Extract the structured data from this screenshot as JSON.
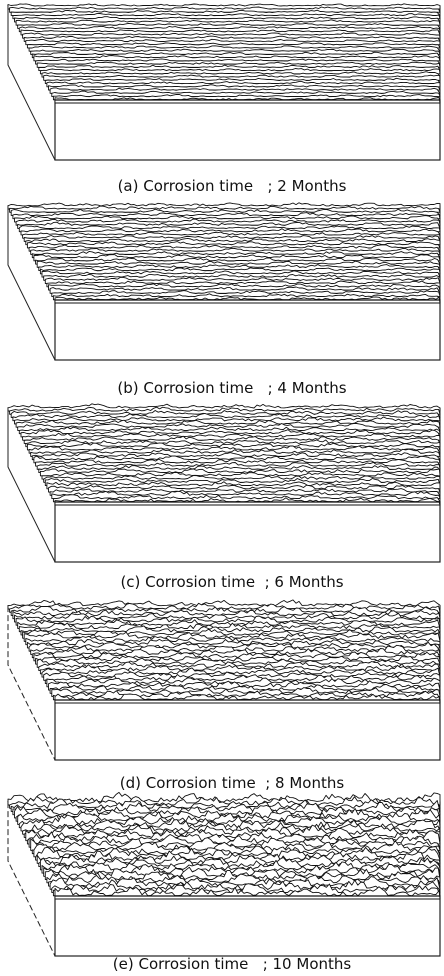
{
  "panels": [
    {
      "caption": "(a) Corrosion time   ; 2 Months"
    },
    {
      "caption": "(b) Corrosion time   ; 4 Months"
    },
    {
      "caption": "(c) Corrosion time  ; 6 Months"
    },
    {
      "caption": "(d) Corrosion time  ; 8 Months"
    },
    {
      "caption": "(e) Corrosion time   ; 10 Months"
    }
  ]
}
